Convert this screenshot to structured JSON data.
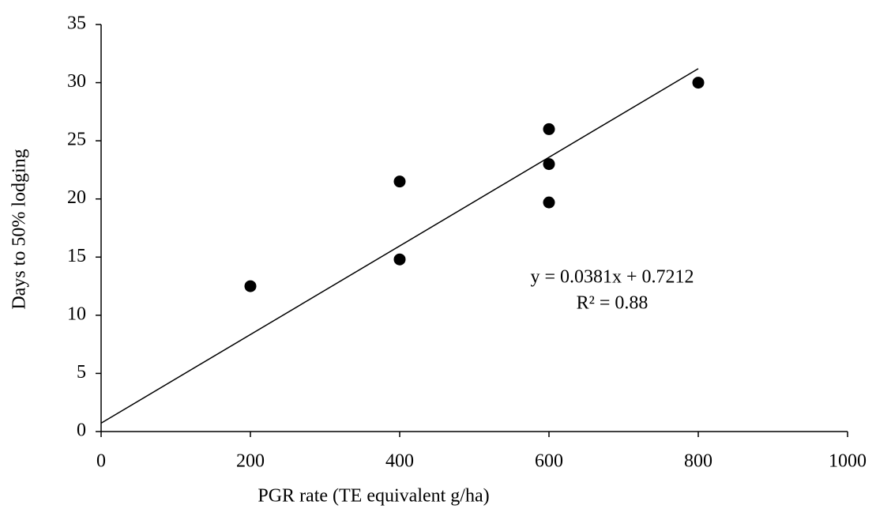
{
  "chart_data": {
    "type": "scatter",
    "x_label": "PGR rate (TE equivalent g/ha)",
    "y_label": "Days to 50% lodging",
    "x": [
      200,
      400,
      400,
      600,
      600,
      600,
      800
    ],
    "values": [
      12.5,
      21.5,
      14.8,
      26,
      23,
      19.7,
      30
    ],
    "color": "#000000",
    "xlim": [
      0,
      1000
    ],
    "xticks": [
      0,
      200,
      400,
      600,
      800,
      1000
    ],
    "ylim": [
      0,
      35
    ],
    "yticks": [
      0,
      5,
      10,
      15,
      20,
      25,
      30,
      35
    ],
    "grid": false,
    "trendline": {
      "slope": 0.0381,
      "intercept": 0.7212,
      "x": [
        0,
        800
      ]
    },
    "annotations": [
      "y = 0.0381x + 0.7212",
      "R² = 0.88"
    ]
  }
}
